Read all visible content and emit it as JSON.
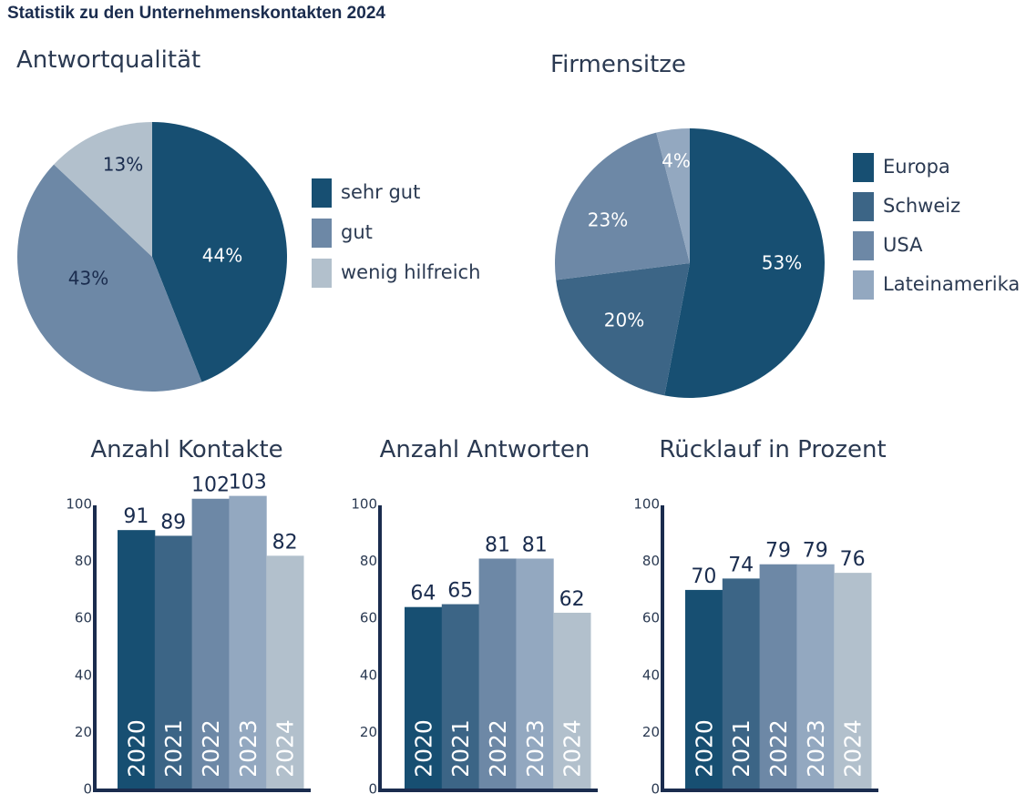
{
  "title": "Statistik zu den Unternehmenskontakten 2024",
  "palette": [
    "#174f72",
    "#3c6586",
    "#6d88a6",
    "#93a8c0",
    "#b2c0cc"
  ],
  "chart_data": [
    {
      "type": "pie",
      "title": "Antwortqualität",
      "categories": [
        "sehr gut",
        "gut",
        "wenig hilfreich"
      ],
      "values": [
        44,
        43,
        13
      ],
      "labels": [
        "44%",
        "43%",
        "13%"
      ],
      "colors": [
        "#174f72",
        "#6d88a6",
        "#b2c0cc"
      ],
      "label_colors": [
        "#ffffff",
        "#1a2c4e",
        "#1a2c4e"
      ],
      "legend": "right"
    },
    {
      "type": "pie",
      "title": "Firmensitze",
      "categories": [
        "Europa",
        "Schweiz",
        "USA",
        "Lateinamerika"
      ],
      "values": [
        53,
        20,
        23,
        4
      ],
      "labels": [
        "53%",
        "20%",
        "23%",
        "4%"
      ],
      "colors": [
        "#174f72",
        "#3c6586",
        "#6d88a6",
        "#93a8c0"
      ],
      "label_colors": [
        "#ffffff",
        "#ffffff",
        "#ffffff",
        "#ffffff"
      ],
      "legend": "right"
    },
    {
      "type": "bar",
      "title": "Anzahl Kontakte",
      "categories": [
        "2020",
        "2021",
        "2022",
        "2023",
        "2024"
      ],
      "values": [
        91,
        89,
        102,
        103,
        82
      ],
      "ylim": [
        0,
        100
      ],
      "yticks": [
        0,
        20,
        40,
        60,
        80,
        100
      ]
    },
    {
      "type": "bar",
      "title": "Anzahl Antworten",
      "categories": [
        "2020",
        "2021",
        "2022",
        "2023",
        "2024"
      ],
      "values": [
        64,
        65,
        81,
        81,
        62
      ],
      "ylim": [
        0,
        100
      ],
      "yticks": [
        0,
        20,
        40,
        60,
        80,
        100
      ]
    },
    {
      "type": "bar",
      "title": "Rücklauf in Prozent",
      "categories": [
        "2020",
        "2021",
        "2022",
        "2023",
        "2024"
      ],
      "values": [
        70,
        74,
        79,
        79,
        76
      ],
      "ylim": [
        0,
        100
      ],
      "yticks": [
        0,
        20,
        40,
        60,
        80,
        100
      ]
    }
  ]
}
